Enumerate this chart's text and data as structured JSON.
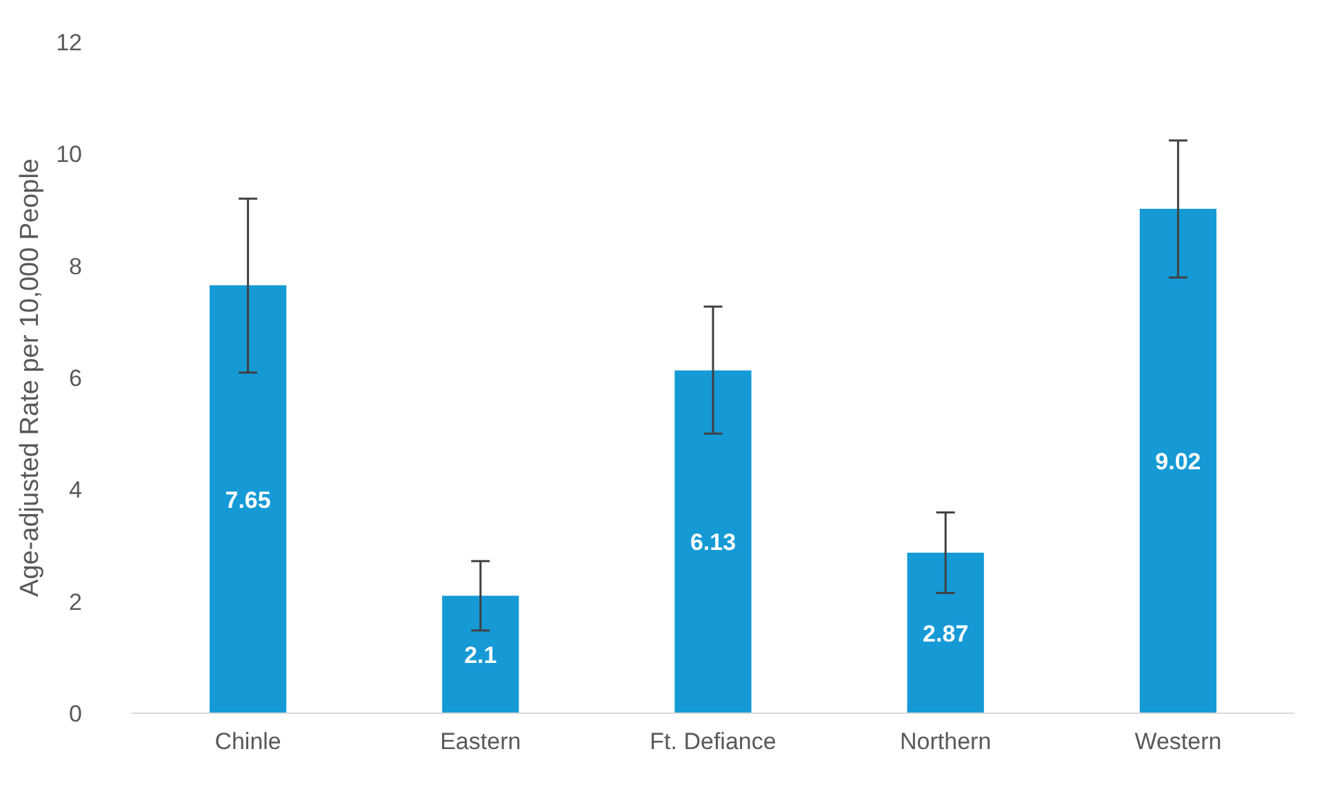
{
  "chart_data": {
    "type": "bar",
    "ylabel": "Age-adjusted Rate per 10,000 People",
    "categories": [
      "Chinle",
      "Eastern",
      "Ft. Defiance",
      "Northern",
      "Western"
    ],
    "values": [
      7.65,
      2.1,
      6.13,
      2.87,
      9.02
    ],
    "errors": [
      [
        6.09,
        9.2
      ],
      [
        1.48,
        2.72
      ],
      [
        5.0,
        7.27
      ],
      [
        2.15,
        3.59
      ],
      [
        7.79,
        10.24
      ]
    ],
    "color": "#159ad6",
    "ylim": [
      0,
      12
    ],
    "yticks": [
      0,
      2,
      4,
      6,
      8,
      10,
      12
    ],
    "data_labels": true
  }
}
